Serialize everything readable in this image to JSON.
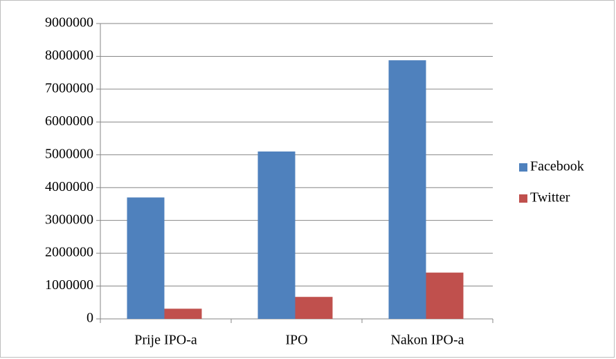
{
  "chart_data": {
    "type": "bar",
    "categories": [
      "Prije IPO-a",
      "IPO",
      "Nakon IPO-a"
    ],
    "series": [
      {
        "name": "Facebook",
        "color": "#4f81bd",
        "values": [
          3700000,
          5100000,
          7880000
        ]
      },
      {
        "name": "Twitter",
        "color": "#c0504d",
        "values": [
          310000,
          670000,
          1410000
        ]
      }
    ],
    "ylim": [
      0,
      9000000
    ],
    "yticks": [
      0,
      1000000,
      2000000,
      3000000,
      4000000,
      5000000,
      6000000,
      7000000,
      8000000,
      9000000
    ],
    "grid": true,
    "legend": "right"
  }
}
